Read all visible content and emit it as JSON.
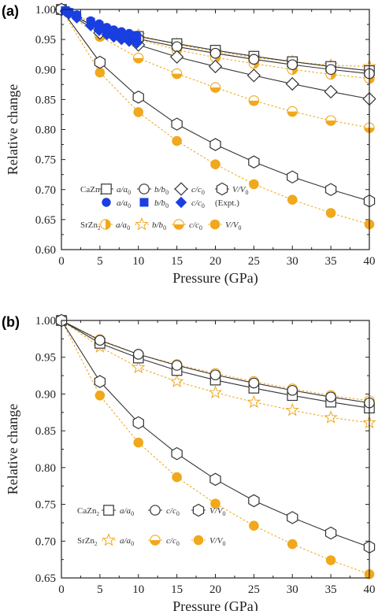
{
  "colors": {
    "ca": "#333333",
    "sr": "#f0a81c",
    "expt": "#1a3fe0",
    "caFill": "#ffffff"
  },
  "chart_data": [
    {
      "type": "line",
      "panel_label": "(a)",
      "xlabel": "Pressure (GPa)",
      "ylabel": "Relative change",
      "xlim": [
        0,
        40
      ],
      "ylim": [
        0.6,
        1.0
      ],
      "xticks": [
        "0",
        "5",
        "10",
        "15",
        "20",
        "25",
        "30",
        "35",
        "40"
      ],
      "yticks": [
        "0.60",
        "0.65",
        "0.70",
        "0.75",
        "0.80",
        "0.85",
        "0.90",
        "0.95",
        "1.00"
      ],
      "x": [
        0,
        5,
        10,
        15,
        20,
        25,
        30,
        35,
        40
      ],
      "legend": {
        "ca_label": "CaZn",
        "ca_sub": "2",
        "sr_label": "SrZn",
        "sr_sub": "2",
        "entries": [
          "a/a0",
          "b/b0",
          "c/c0",
          "V/V0"
        ],
        "expt_label": "(Expt.)"
      },
      "series": [
        {
          "name": "a/a0",
          "compound": "CaZn2",
          "marker": "square",
          "values": [
            1.0,
            0.967,
            0.955,
            0.943,
            0.932,
            0.922,
            0.913,
            0.905,
            0.898
          ]
        },
        {
          "name": "b/b0",
          "compound": "CaZn2",
          "marker": "circle",
          "values": [
            1.0,
            0.967,
            0.951,
            0.938,
            0.927,
            0.917,
            0.908,
            0.9,
            0.893
          ]
        },
        {
          "name": "c/c0",
          "compound": "CaZn2",
          "marker": "diamond",
          "values": [
            1.0,
            0.961,
            0.941,
            0.921,
            0.905,
            0.89,
            0.876,
            0.863,
            0.851
          ]
        },
        {
          "name": "V/V0",
          "compound": "CaZn2",
          "marker": "hexagon",
          "values": [
            1.0,
            0.912,
            0.854,
            0.809,
            0.775,
            0.746,
            0.721,
            0.7,
            0.681
          ]
        },
        {
          "name": "a/a0",
          "compound": "SrZn2",
          "marker": "circle-half-right",
          "values": [
            1.0,
            0.969,
            0.95,
            0.933,
            0.92,
            0.91,
            0.9,
            0.892,
            0.885
          ]
        },
        {
          "name": "b/b0",
          "compound": "SrZn2",
          "marker": "star",
          "values": [
            1.0,
            0.973,
            0.957,
            0.942,
            0.93,
            0.92,
            0.913,
            0.907,
            0.905
          ]
        },
        {
          "name": "c/c0",
          "compound": "SrZn2",
          "marker": "circle-half-bottom",
          "values": [
            1.0,
            0.955,
            0.919,
            0.893,
            0.87,
            0.848,
            0.83,
            0.815,
            0.803
          ]
        },
        {
          "name": "V/V0",
          "compound": "SrZn2",
          "marker": "circle-filled",
          "values": [
            1.0,
            0.895,
            0.829,
            0.781,
            0.742,
            0.709,
            0.683,
            0.661,
            0.642
          ]
        }
      ],
      "experimental": [
        {
          "name": "a/a0",
          "marker": "circle-filled",
          "x": [
            0.5,
            1.0,
            2.0,
            3.8,
            4.9,
            5.9,
            6.8,
            7.8,
            8.8,
            9.8
          ],
          "values": [
            0.998,
            0.996,
            0.991,
            0.981,
            0.976,
            0.97,
            0.966,
            0.963,
            0.96,
            0.957
          ]
        },
        {
          "name": "b/b0",
          "marker": "square-filled",
          "x": [
            0.5,
            1.0,
            2.0,
            3.8,
            4.9,
            5.9,
            6.8,
            7.8,
            8.8,
            9.8
          ],
          "values": [
            0.998,
            0.995,
            0.99,
            0.979,
            0.973,
            0.966,
            0.962,
            0.958,
            0.955,
            0.952
          ]
        },
        {
          "name": "c/c0",
          "marker": "diamond-filled",
          "x": [
            0.5,
            1.0,
            2.0,
            3.8,
            4.9,
            5.9,
            6.8,
            7.8,
            8.8,
            9.8
          ],
          "values": [
            0.997,
            0.993,
            0.986,
            0.973,
            0.965,
            0.958,
            0.954,
            0.95,
            0.947,
            0.944
          ]
        }
      ]
    },
    {
      "type": "line",
      "panel_label": "(b)",
      "xlabel": "Pressure (GPa)",
      "ylabel": "Relative change",
      "xlim": [
        0,
        40
      ],
      "ylim": [
        0.65,
        1.0
      ],
      "xticks": [
        "0",
        "5",
        "10",
        "15",
        "20",
        "25",
        "30",
        "35",
        "40"
      ],
      "yticks": [
        "0.65",
        "0.70",
        "0.75",
        "0.80",
        "0.85",
        "0.90",
        "0.95",
        "1.00"
      ],
      "x": [
        0,
        5,
        10,
        15,
        20,
        25,
        30,
        35,
        40
      ],
      "legend": {
        "ca_label": "CaZn",
        "ca_sub": "2",
        "sr_label": "SrZn",
        "sr_sub": "2",
        "entries": [
          "a/a0",
          "c/c0",
          "V/V0"
        ]
      },
      "series": [
        {
          "name": "a/a0",
          "compound": "CaZn2",
          "marker": "square",
          "values": [
            1.0,
            0.969,
            0.949,
            0.932,
            0.919,
            0.908,
            0.898,
            0.889,
            0.881
          ]
        },
        {
          "name": "c/c0",
          "compound": "CaZn2",
          "marker": "circle",
          "values": [
            1.0,
            0.973,
            0.954,
            0.939,
            0.926,
            0.915,
            0.905,
            0.896,
            0.888
          ]
        },
        {
          "name": "V/V0",
          "compound": "CaZn2",
          "marker": "hexagon",
          "values": [
            1.0,
            0.917,
            0.861,
            0.819,
            0.784,
            0.755,
            0.732,
            0.711,
            0.692
          ]
        },
        {
          "name": "a/a0",
          "compound": "SrZn2",
          "marker": "star",
          "values": [
            1.0,
            0.964,
            0.936,
            0.917,
            0.902,
            0.889,
            0.878,
            0.868,
            0.861
          ]
        },
        {
          "name": "c/c0",
          "compound": "SrZn2",
          "marker": "circle-half-bottom",
          "values": [
            1.0,
            0.974,
            0.954,
            0.94,
            0.928,
            0.917,
            0.907,
            0.898,
            0.891
          ]
        },
        {
          "name": "V/V0",
          "compound": "SrZn2",
          "marker": "circle-filled",
          "values": [
            1.0,
            0.898,
            0.834,
            0.787,
            0.751,
            0.721,
            0.696,
            0.674,
            0.655
          ]
        }
      ]
    }
  ]
}
